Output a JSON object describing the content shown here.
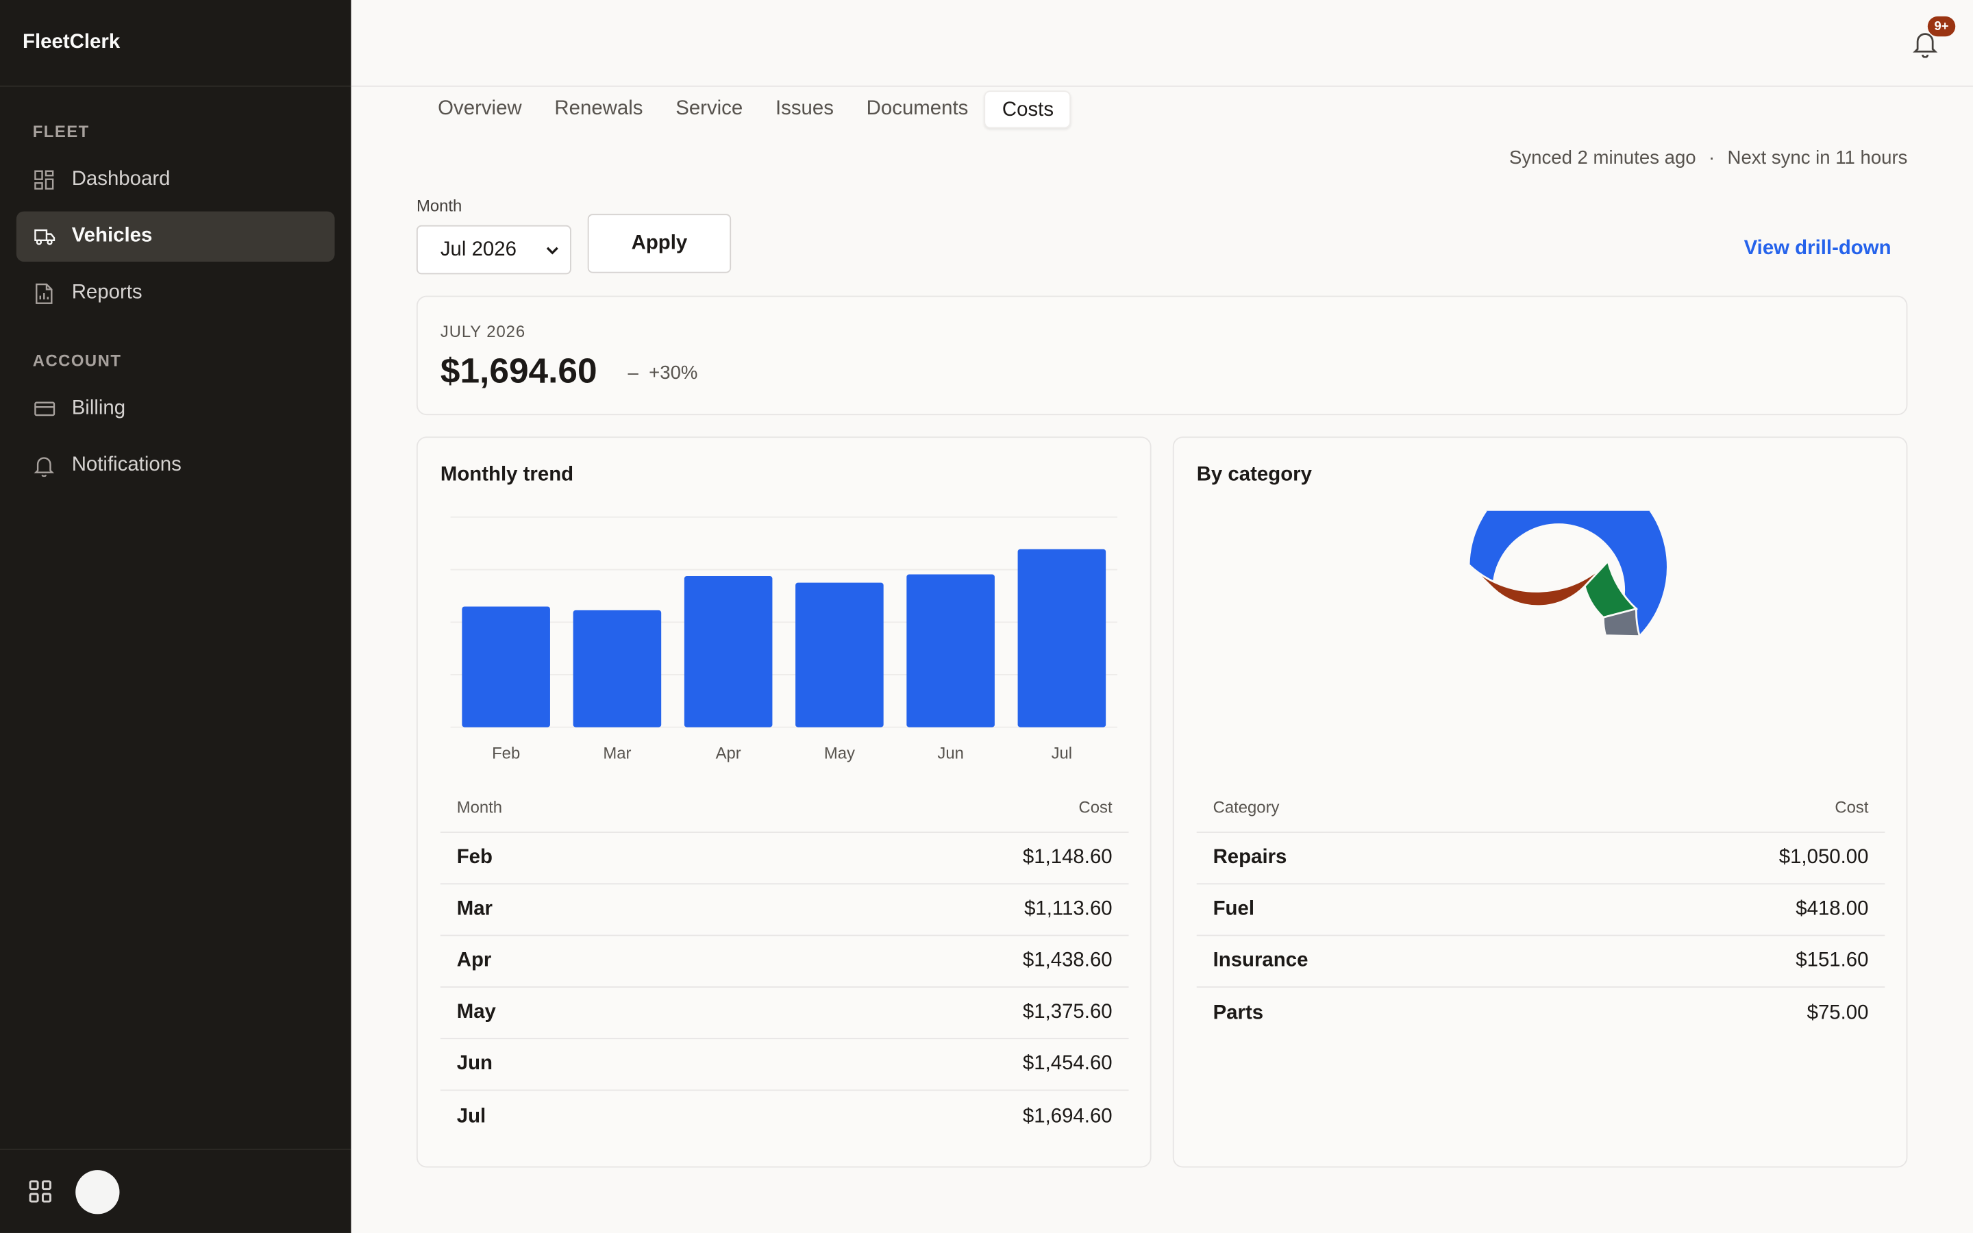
{
  "app": {
    "name": "FleetClerk"
  },
  "sidebar": {
    "sections": [
      {
        "title": "FLEET",
        "items": [
          {
            "label": "Dashboard",
            "icon": "dashboard-icon",
            "active": false
          },
          {
            "label": "Vehicles",
            "icon": "truck-icon",
            "active": true
          },
          {
            "label": "Reports",
            "icon": "report-icon",
            "active": false
          }
        ]
      },
      {
        "title": "ACCOUNT",
        "items": [
          {
            "label": "Billing",
            "icon": "credit-card-icon",
            "active": false
          },
          {
            "label": "Notifications",
            "icon": "bell-icon",
            "active": false
          }
        ]
      }
    ]
  },
  "topbar": {
    "notifications_badge": "9+"
  },
  "tabs": [
    {
      "label": "Overview",
      "active": false
    },
    {
      "label": "Renewals",
      "active": false
    },
    {
      "label": "Service",
      "active": false
    },
    {
      "label": "Issues",
      "active": false
    },
    {
      "label": "Documents",
      "active": false
    },
    {
      "label": "Costs",
      "active": true
    }
  ],
  "sync": {
    "last": "Synced 2 minutes ago",
    "separator": "·",
    "next": "Next sync in 11 hours"
  },
  "filter": {
    "month_label": "Month",
    "month_value": "Jul 2026",
    "apply_label": "Apply",
    "drill_label": "View drill-down"
  },
  "summary": {
    "period": "JULY 2026",
    "amount": "$1,694.60",
    "change_marker": "–",
    "change": "+30%"
  },
  "trend": {
    "title": "Monthly trend",
    "table_headers": {
      "month": "Month",
      "cost": "Cost"
    },
    "rows": [
      {
        "month": "Feb",
        "cost": "$1,148.60"
      },
      {
        "month": "Mar",
        "cost": "$1,113.60"
      },
      {
        "month": "Apr",
        "cost": "$1,438.60"
      },
      {
        "month": "May",
        "cost": "$1,375.60"
      },
      {
        "month": "Jun",
        "cost": "$1,454.60"
      },
      {
        "month": "Jul",
        "cost": "$1,694.60"
      }
    ]
  },
  "category": {
    "title": "By category",
    "table_headers": {
      "category": "Category",
      "cost": "Cost"
    },
    "rows": [
      {
        "category": "Repairs",
        "cost": "$1,050.00"
      },
      {
        "category": "Fuel",
        "cost": "$418.00"
      },
      {
        "category": "Insurance",
        "cost": "$151.60"
      },
      {
        "category": "Parts",
        "cost": "$75.00"
      }
    ]
  },
  "colors": {
    "accent": "#2563eb",
    "repairs": "#2563eb",
    "fuel": "#9a3412",
    "insurance": "#15803d",
    "parts": "#6b7280"
  },
  "chart_data": [
    {
      "type": "bar",
      "title": "Monthly trend",
      "categories": [
        "Feb",
        "Mar",
        "Apr",
        "May",
        "Jun",
        "Jul"
      ],
      "values": [
        1148.6,
        1113.6,
        1438.6,
        1375.6,
        1454.6,
        1694.6
      ],
      "ylim": [
        0,
        2000
      ],
      "grid": true,
      "color": "#2563eb"
    },
    {
      "type": "pie",
      "variant": "donut",
      "title": "By category",
      "categories": [
        "Repairs",
        "Fuel",
        "Insurance",
        "Parts"
      ],
      "values": [
        1050.0,
        418.0,
        151.6,
        75.0
      ],
      "colors": [
        "#2563eb",
        "#9a3412",
        "#15803d",
        "#6b7280"
      ]
    }
  ]
}
